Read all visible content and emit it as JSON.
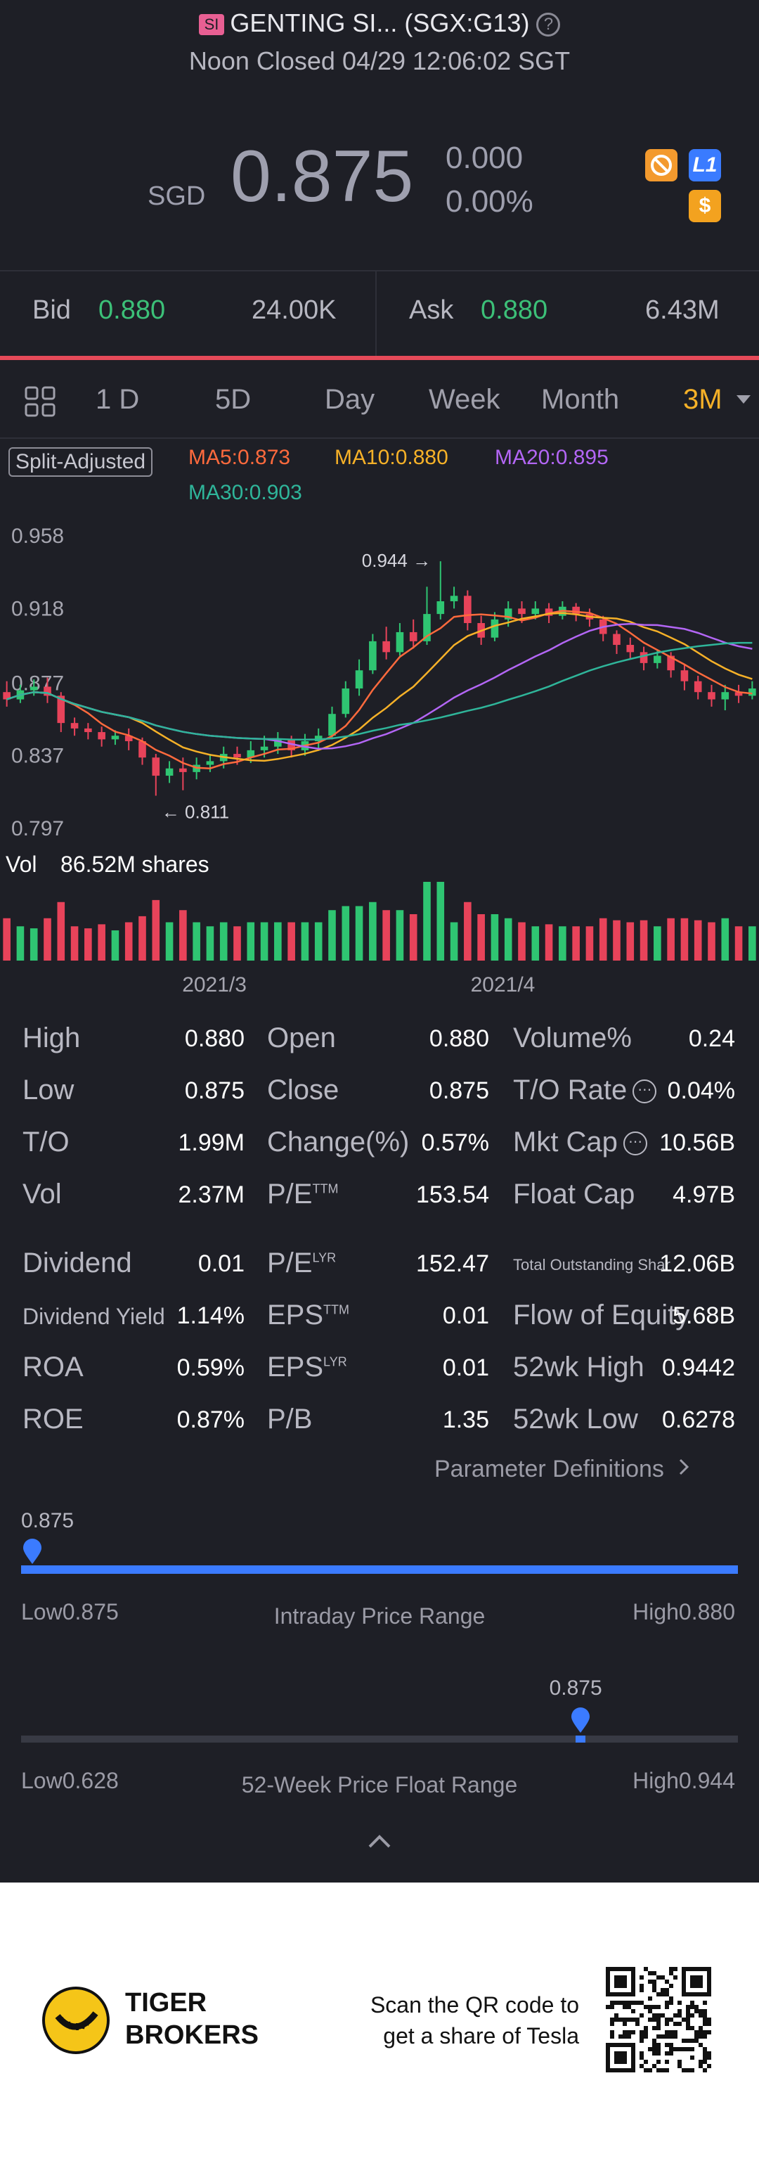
{
  "header": {
    "badge": "SI",
    "title": "GENTING SI... (SGX:G13)",
    "help_icon": "?",
    "status": "Noon Closed 04/29 12:06:02 SGT"
  },
  "quote": {
    "currency": "SGD",
    "price": "0.875",
    "change": "0.000",
    "change_pct": "0.00%",
    "icons": [
      "no-ads-icon",
      "level1-icon",
      "dollar-icon"
    ],
    "icon_l1": "L1",
    "icon_dollar": "$"
  },
  "bidask": {
    "bid_label": "Bid",
    "bid_price": "0.880",
    "bid_size": "24.00K",
    "ask_label": "Ask",
    "ask_price": "0.880",
    "ask_size": "6.43M"
  },
  "tabs": [
    "1 D",
    "5D",
    "Day",
    "Week",
    "Month",
    "3M"
  ],
  "tab_active": "3M",
  "chart_data": {
    "type": "candlestick",
    "adjust_label": "Split-Adjusted",
    "ma": [
      {
        "label": "MA5:0.873",
        "color": "#ff6a3d"
      },
      {
        "label": "MA10:0.880",
        "color": "#f6b128"
      },
      {
        "label": "MA20:0.895",
        "color": "#b366f5"
      },
      {
        "label": "MA30:0.903",
        "color": "#2fb59a"
      }
    ],
    "y_ticks": [
      "0.958",
      "0.918",
      "0.877",
      "0.837",
      "0.797"
    ],
    "ylim": [
      0.797,
      0.958
    ],
    "max_label": "0.944",
    "min_label": "0.811",
    "vol_label": "Vol",
    "vol_value": "86.52M shares",
    "x_ticks": [
      "2021/3",
      "2021/4"
    ],
    "candles": [
      [
        0.872,
        0.868,
        0.878,
        0.864
      ],
      [
        0.868,
        0.873,
        0.876,
        0.866
      ],
      [
        0.873,
        0.875,
        0.879,
        0.87
      ],
      [
        0.875,
        0.87,
        0.88,
        0.866
      ],
      [
        0.87,
        0.855,
        0.872,
        0.85
      ],
      [
        0.855,
        0.852,
        0.858,
        0.848
      ],
      [
        0.852,
        0.85,
        0.855,
        0.846
      ],
      [
        0.85,
        0.846,
        0.853,
        0.842
      ],
      [
        0.846,
        0.848,
        0.851,
        0.843
      ],
      [
        0.848,
        0.845,
        0.852,
        0.84
      ],
      [
        0.845,
        0.836,
        0.847,
        0.832
      ],
      [
        0.836,
        0.826,
        0.838,
        0.815
      ],
      [
        0.826,
        0.83,
        0.834,
        0.822
      ],
      [
        0.83,
        0.828,
        0.836,
        0.818
      ],
      [
        0.828,
        0.832,
        0.836,
        0.824
      ],
      [
        0.832,
        0.834,
        0.838,
        0.828
      ],
      [
        0.834,
        0.838,
        0.842,
        0.83
      ],
      [
        0.838,
        0.836,
        0.842,
        0.832
      ],
      [
        0.836,
        0.84,
        0.845,
        0.833
      ],
      [
        0.84,
        0.842,
        0.848,
        0.836
      ],
      [
        0.842,
        0.846,
        0.85,
        0.838
      ],
      [
        0.846,
        0.84,
        0.848,
        0.836
      ],
      [
        0.84,
        0.845,
        0.849,
        0.837
      ],
      [
        0.845,
        0.848,
        0.852,
        0.84
      ],
      [
        0.848,
        0.86,
        0.864,
        0.846
      ],
      [
        0.86,
        0.874,
        0.878,
        0.858
      ],
      [
        0.874,
        0.884,
        0.89,
        0.87
      ],
      [
        0.884,
        0.9,
        0.904,
        0.882
      ],
      [
        0.9,
        0.894,
        0.908,
        0.89
      ],
      [
        0.894,
        0.905,
        0.91,
        0.892
      ],
      [
        0.905,
        0.9,
        0.912,
        0.896
      ],
      [
        0.9,
        0.915,
        0.93,
        0.898
      ],
      [
        0.915,
        0.922,
        0.944,
        0.912
      ],
      [
        0.922,
        0.925,
        0.93,
        0.918
      ],
      [
        0.925,
        0.91,
        0.928,
        0.906
      ],
      [
        0.91,
        0.902,
        0.914,
        0.898
      ],
      [
        0.902,
        0.912,
        0.916,
        0.9
      ],
      [
        0.912,
        0.918,
        0.922,
        0.908
      ],
      [
        0.918,
        0.915,
        0.922,
        0.91
      ],
      [
        0.915,
        0.918,
        0.922,
        0.912
      ],
      [
        0.918,
        0.914,
        0.921,
        0.91
      ],
      [
        0.914,
        0.919,
        0.922,
        0.912
      ],
      [
        0.919,
        0.915,
        0.921,
        0.911
      ],
      [
        0.915,
        0.912,
        0.918,
        0.908
      ],
      [
        0.912,
        0.904,
        0.914,
        0.9
      ],
      [
        0.904,
        0.898,
        0.906,
        0.893
      ],
      [
        0.898,
        0.894,
        0.902,
        0.89
      ],
      [
        0.894,
        0.888,
        0.897,
        0.884
      ],
      [
        0.888,
        0.892,
        0.895,
        0.885
      ],
      [
        0.892,
        0.884,
        0.894,
        0.88
      ],
      [
        0.884,
        0.878,
        0.887,
        0.873
      ],
      [
        0.878,
        0.872,
        0.881,
        0.868
      ],
      [
        0.872,
        0.868,
        0.876,
        0.864
      ],
      [
        0.868,
        0.872,
        0.876,
        0.862
      ],
      [
        0.872,
        0.87,
        0.876,
        0.866
      ],
      [
        0.87,
        0.874,
        0.878,
        0.868
      ]
    ]
  },
  "stats": {
    "rows": [
      [
        {
          "l": "High",
          "v": "0.880"
        },
        {
          "l": "Open",
          "v": "0.880"
        },
        {
          "l": "Volume%",
          "v": "0.24"
        }
      ],
      [
        {
          "l": "Low",
          "v": "0.875"
        },
        {
          "l": "Close",
          "v": "0.875"
        },
        {
          "l": "T/O Rate",
          "v": "0.04%"
        }
      ],
      [
        {
          "l": "T/O",
          "v": "1.99M"
        },
        {
          "l": "Change(%)",
          "v": "0.57%"
        },
        {
          "l": "Mkt Cap",
          "v": "10.56B"
        }
      ],
      [
        {
          "l": "Vol",
          "v": "2.37M"
        },
        {
          "l": "P/E",
          "sup": "TTM",
          "v": "153.54"
        },
        {
          "l": "Float Cap",
          "v": "4.97B"
        }
      ]
    ],
    "rows2": [
      [
        {
          "l": "Dividend",
          "v": "0.01"
        },
        {
          "l": "P/E",
          "sup": "LYR",
          "v": "152.47"
        },
        {
          "l": "Total Outstanding Shar",
          "v": "12.06B"
        }
      ],
      [
        {
          "l": "Dividend Yield",
          "v": "1.14%"
        },
        {
          "l": "EPS",
          "sup": "TTM",
          "v": "0.01"
        },
        {
          "l": "Flow of Equity",
          "v": "5.68B"
        }
      ],
      [
        {
          "l": "ROA",
          "v": "0.59%"
        },
        {
          "l": "EPS",
          "sup": "LYR",
          "v": "0.01"
        },
        {
          "l": "52wk High",
          "v": "0.9442"
        }
      ],
      [
        {
          "l": "ROE",
          "v": "0.87%"
        },
        {
          "l": "P/B",
          "v": "1.35"
        },
        {
          "l": "52wk Low",
          "v": "0.6278"
        }
      ]
    ],
    "param_link": "Parameter Definitions"
  },
  "intraday": {
    "marker_value": "0.875",
    "position": 0.0,
    "low": "Low0.875",
    "title": "Intraday Price Range",
    "high": "High0.880"
  },
  "week52": {
    "marker_value": "0.875",
    "position": 0.78,
    "low": "Low0.628",
    "title": "52-Week Price Float Range",
    "high": "High0.944"
  },
  "footer": {
    "brand_line1": "TIGER",
    "brand_line2": "BROKERS",
    "scan_line1": "Scan the QR code to",
    "scan_line2": "get a share of Tesla"
  }
}
